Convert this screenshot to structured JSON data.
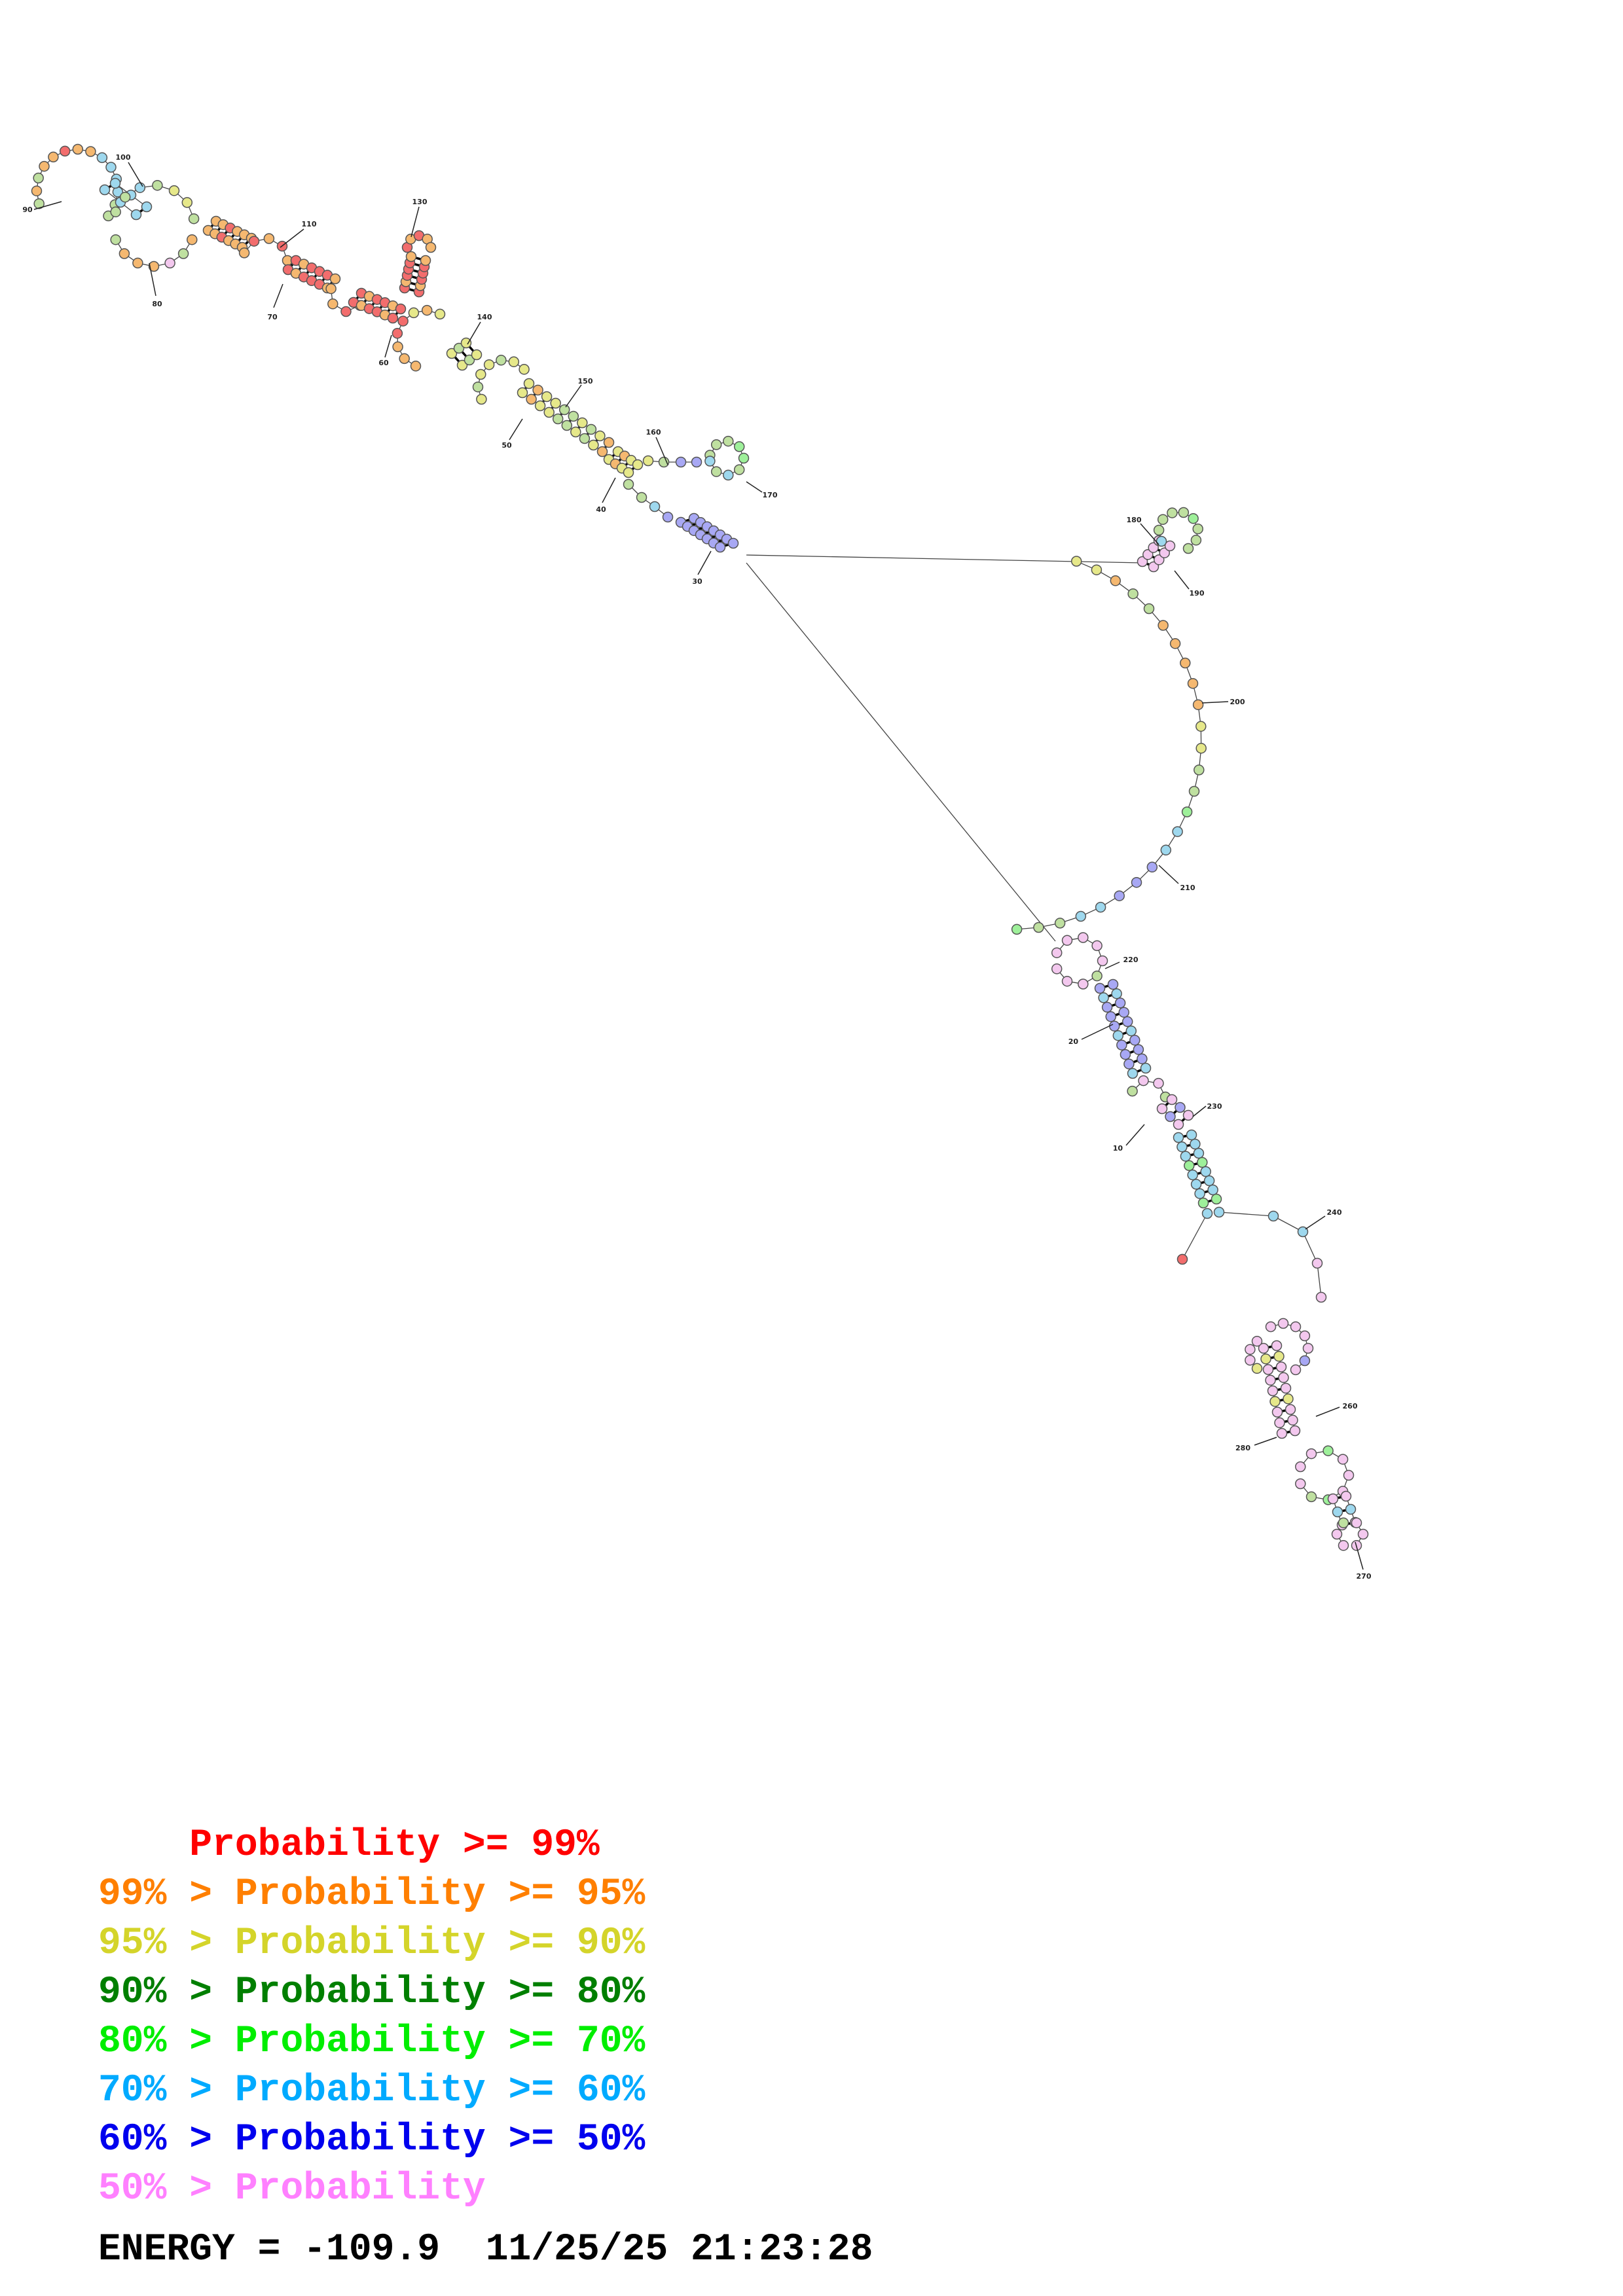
{
  "diagram": {
    "nucleotide_labels": [
      "10",
      "20",
      "30",
      "40",
      "50",
      "60",
      "70",
      "80",
      "90",
      "100",
      "110",
      "130",
      "140",
      "150",
      "160",
      "170",
      "180",
      "190",
      "200",
      "210",
      "220",
      "230",
      "240",
      "260",
      "270",
      "280"
    ],
    "palette": {
      "p99": "#f26d6d",
      "p95": "#f5b870",
      "p90": "#e6e88a",
      "p80": "#bfe0a0",
      "p70": "#9ef09a",
      "p60": "#9ed8ee",
      "p50": "#a8a8f4",
      "p00": "#f3c8ee"
    }
  },
  "legend": {
    "rows": [
      {
        "prefix": "    ",
        "label": "Probability >= 99%",
        "color": "#ff0000"
      },
      {
        "prefix": "99% > ",
        "label": "Probability >= 95%",
        "color": "#ff7f00"
      },
      {
        "prefix": "95% > ",
        "label": "Probability >= 90%",
        "color": "#d4d42a"
      },
      {
        "prefix": "90% > ",
        "label": "Probability >= 80%",
        "color": "#007f00"
      },
      {
        "prefix": "80% > ",
        "label": "Probability >= 70%",
        "color": "#00ee00"
      },
      {
        "prefix": "70% > ",
        "label": "Probability >= 60%",
        "color": "#00aaff"
      },
      {
        "prefix": "60% > ",
        "label": "Probability >= 50%",
        "color": "#0000ee"
      },
      {
        "prefix": "50% > ",
        "label": "Probability",
        "color": "#ff80ff"
      }
    ]
  },
  "footer": {
    "energy": "ENERGY = -109.9  11/25/25 21:23:28"
  }
}
